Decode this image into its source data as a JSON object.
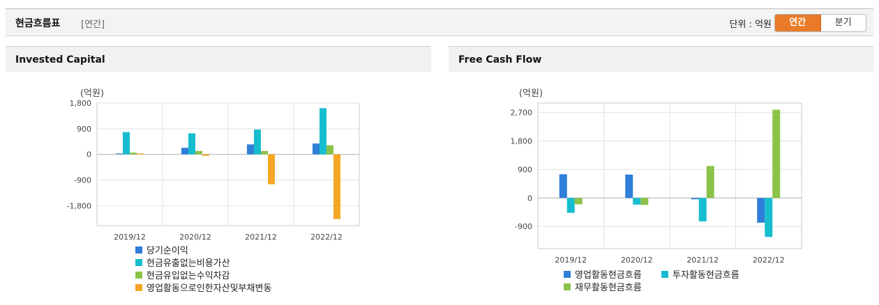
{
  "header": {
    "title": "현금흐름표",
    "subtitle": "[연간]",
    "unit_label": "단위 : 억원",
    "toggle": {
      "active": "연간",
      "inactive": "분기"
    }
  },
  "chart_data": [
    {
      "type": "bar",
      "title": "Invested Capital",
      "ylabel": "(억원)",
      "ylim": [
        -2500,
        1800
      ],
      "yticks": [
        1800,
        900,
        0,
        -900,
        -1800
      ],
      "ytick_labels": [
        "1,800",
        "900",
        "0",
        "-900",
        "-1,800"
      ],
      "categories": [
        "2019/12",
        "2020/12",
        "2021/12",
        "2022/12"
      ],
      "grid": true,
      "legend_position": "bottom",
      "series": [
        {
          "name": "당기순이익",
          "color": "#2f7ed8",
          "values": [
            30,
            230,
            350,
            380
          ]
        },
        {
          "name": "현금유출없는비용가산",
          "color": "#17bdcf",
          "values": [
            780,
            740,
            870,
            1620
          ]
        },
        {
          "name": "현금유입없는수익차감",
          "color": "#8bc34a",
          "values": [
            60,
            120,
            120,
            320
          ]
        },
        {
          "name": "영업활동으로인한자산및부채변동",
          "color": "#f5a623",
          "values": [
            30,
            -50,
            -1050,
            -2270
          ]
        }
      ]
    },
    {
      "type": "bar",
      "title": "Free Cash Flow",
      "ylabel": "(억원)",
      "ylim": [
        -1600,
        3000
      ],
      "yticks": [
        2700,
        1800,
        900,
        0,
        -900
      ],
      "ytick_labels": [
        "2,700",
        "1,800",
        "900",
        "0",
        "-900"
      ],
      "categories": [
        "2019/12",
        "2020/12",
        "2021/12",
        "2022/12"
      ],
      "grid": true,
      "legend_position": "bottom",
      "series": [
        {
          "name": "영업활동현금흐름",
          "color": "#2f7ed8",
          "values": [
            750,
            740,
            -40,
            -780
          ]
        },
        {
          "name": "투자활동현금흐름",
          "color": "#17bdcf",
          "values": [
            -470,
            -210,
            -740,
            -1230
          ]
        },
        {
          "name": "재무활동현금흐름",
          "color": "#8bc34a",
          "values": [
            -200,
            -220,
            1010,
            2790
          ]
        }
      ]
    }
  ]
}
